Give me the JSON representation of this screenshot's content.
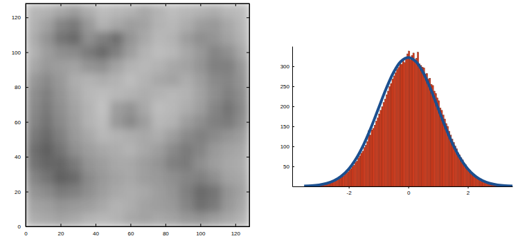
{
  "chart_data": [
    {
      "type": "heatmap",
      "xlim": [
        0,
        128
      ],
      "ylim": [
        0,
        128
      ],
      "zlim": [
        0,
        1
      ],
      "xticks": [
        0,
        20,
        40,
        60,
        80,
        100,
        120
      ],
      "yticks": [
        0,
        20,
        40,
        60,
        80,
        100,
        120
      ],
      "cells": [
        [
          0.72,
          0.7,
          0.66,
          0.62,
          0.68,
          0.74,
          0.72,
          0.7,
          0.66,
          0.7,
          0.74,
          0.72,
          0.7,
          0.68,
          0.72,
          0.74
        ],
        [
          0.7,
          0.64,
          0.52,
          0.48,
          0.6,
          0.7,
          0.66,
          0.62,
          0.64,
          0.7,
          0.72,
          0.68,
          0.62,
          0.6,
          0.66,
          0.72
        ],
        [
          0.68,
          0.58,
          0.46,
          0.42,
          0.56,
          0.5,
          0.44,
          0.58,
          0.66,
          0.72,
          0.7,
          0.62,
          0.56,
          0.58,
          0.64,
          0.7
        ],
        [
          0.7,
          0.62,
          0.56,
          0.54,
          0.48,
          0.42,
          0.5,
          0.62,
          0.7,
          0.74,
          0.72,
          0.66,
          0.6,
          0.52,
          0.56,
          0.66
        ],
        [
          0.66,
          0.6,
          0.62,
          0.64,
          0.58,
          0.56,
          0.64,
          0.7,
          0.72,
          0.7,
          0.66,
          0.64,
          0.58,
          0.5,
          0.5,
          0.6
        ],
        [
          0.6,
          0.54,
          0.6,
          0.68,
          0.7,
          0.68,
          0.7,
          0.74,
          0.7,
          0.66,
          0.64,
          0.68,
          0.62,
          0.54,
          0.52,
          0.58
        ],
        [
          0.56,
          0.5,
          0.58,
          0.66,
          0.72,
          0.74,
          0.72,
          0.7,
          0.68,
          0.7,
          0.72,
          0.7,
          0.64,
          0.56,
          0.5,
          0.56
        ],
        [
          0.54,
          0.48,
          0.56,
          0.64,
          0.7,
          0.76,
          0.62,
          0.58,
          0.66,
          0.74,
          0.72,
          0.68,
          0.62,
          0.52,
          0.46,
          0.54
        ],
        [
          0.52,
          0.46,
          0.54,
          0.62,
          0.7,
          0.74,
          0.6,
          0.54,
          0.62,
          0.72,
          0.7,
          0.62,
          0.56,
          0.5,
          0.48,
          0.56
        ],
        [
          0.48,
          0.42,
          0.5,
          0.6,
          0.66,
          0.72,
          0.7,
          0.68,
          0.66,
          0.68,
          0.62,
          0.54,
          0.5,
          0.54,
          0.58,
          0.62
        ],
        [
          0.44,
          0.38,
          0.46,
          0.56,
          0.62,
          0.66,
          0.68,
          0.7,
          0.66,
          0.62,
          0.54,
          0.48,
          0.52,
          0.6,
          0.64,
          0.66
        ],
        [
          0.46,
          0.4,
          0.4,
          0.48,
          0.58,
          0.62,
          0.66,
          0.66,
          0.62,
          0.58,
          0.5,
          0.48,
          0.56,
          0.62,
          0.66,
          0.68
        ],
        [
          0.52,
          0.46,
          0.38,
          0.42,
          0.54,
          0.6,
          0.64,
          0.66,
          0.62,
          0.6,
          0.56,
          0.52,
          0.5,
          0.56,
          0.64,
          0.66
        ],
        [
          0.58,
          0.54,
          0.48,
          0.5,
          0.56,
          0.62,
          0.66,
          0.68,
          0.66,
          0.62,
          0.58,
          0.5,
          0.42,
          0.46,
          0.58,
          0.64
        ],
        [
          0.64,
          0.62,
          0.58,
          0.6,
          0.62,
          0.66,
          0.7,
          0.68,
          0.64,
          0.62,
          0.6,
          0.52,
          0.44,
          0.48,
          0.6,
          0.66
        ],
        [
          0.68,
          0.66,
          0.64,
          0.66,
          0.7,
          0.72,
          0.7,
          0.66,
          0.64,
          0.66,
          0.64,
          0.6,
          0.58,
          0.62,
          0.66,
          0.7
        ]
      ]
    },
    {
      "type": "histogram",
      "color": "#e2401f",
      "xlim": [
        -3.9,
        3.5
      ],
      "ylim": [
        0,
        350
      ],
      "xticks": [
        -2,
        0,
        2
      ],
      "yticks": [
        50,
        100,
        150,
        200,
        250,
        300
      ],
      "bins": [
        -3,
        -2.95,
        -2.9,
        -2.85,
        -2.8,
        -2.75,
        -2.7,
        -2.65,
        -2.6,
        -2.55,
        -2.5,
        -2.45,
        -2.4,
        -2.35,
        -2.3,
        -2.25,
        -2.2,
        -2.15,
        -2.1,
        -2.05,
        -2,
        -1.95,
        -1.9,
        -1.85,
        -1.8,
        -1.75,
        -1.7,
        -1.65,
        -1.6,
        -1.55,
        -1.5,
        -1.45,
        -1.4,
        -1.35,
        -1.3,
        -1.25,
        -1.2,
        -1.15,
        -1.1,
        -1.05,
        -1,
        -0.95,
        -0.9,
        -0.85,
        -0.8,
        -0.75,
        -0.7,
        -0.65,
        -0.6,
        -0.55,
        -0.5,
        -0.45,
        -0.4,
        -0.35,
        -0.3,
        -0.25,
        -0.2,
        -0.15,
        -0.1,
        -0.05,
        0,
        0.05,
        0.1,
        0.15,
        0.2,
        0.25,
        0.3,
        0.35,
        0.4,
        0.45,
        0.5,
        0.55,
        0.6,
        0.65,
        0.7,
        0.75,
        0.8,
        0.85,
        0.9,
        0.95,
        1,
        1.05,
        1.1,
        1.15,
        1.2,
        1.25,
        1.3,
        1.35,
        1.4,
        1.45,
        1.5,
        1.55,
        1.6,
        1.65,
        1.7,
        1.75,
        1.8,
        1.85,
        1.9,
        1.95,
        2,
        2.05,
        2.1,
        2.15,
        2.2,
        2.25,
        2.3,
        2.35,
        2.4,
        2.45,
        2.5,
        2.55,
        2.6,
        2.65,
        2.7,
        2.75,
        2.8,
        2.85,
        2.9,
        2.95,
        3
      ],
      "counts": [
        3,
        4,
        4,
        5,
        6,
        6,
        8,
        9,
        10,
        11,
        13,
        14,
        17,
        18,
        21,
        24,
        26,
        30,
        33,
        36,
        41,
        44,
        50,
        53,
        60,
        63,
        71,
        76,
        83,
        88,
        97,
        103,
        112,
        139,
        128,
        141,
        145,
        153,
        163,
        171,
        181,
        190,
        199,
        210,
        218,
        229,
        238,
        249,
        257,
        268,
        276,
        284,
        292,
        297,
        310,
        305,
        318,
        309,
        322,
        331,
        338,
        316,
        327,
        333,
        312,
        320,
        335,
        306,
        302,
        298,
        296,
        281,
        282,
        268,
        270,
        255,
        252,
        238,
        232,
        221,
        214,
        196,
        190,
        178,
        168,
        157,
        150,
        138,
        128,
        118,
        110,
        101,
        94,
        84,
        79,
        72,
        66,
        58,
        54,
        48,
        44,
        40,
        35,
        31,
        28,
        25,
        22,
        19,
        18,
        15,
        13,
        12,
        10,
        9,
        8,
        7,
        6,
        5,
        4,
        4
      ],
      "series": [
        {
          "type": "line",
          "color": "#1b4f8f",
          "x": [
            -3.5,
            -3.25,
            -3,
            -2.75,
            -2.5,
            -2.25,
            -2,
            -1.75,
            -1.5,
            -1.25,
            -1,
            -0.75,
            -0.5,
            -0.25,
            0,
            0.25,
            0.5,
            0.75,
            1,
            1.25,
            1.5,
            1.75,
            2,
            2.25,
            2.5,
            2.75,
            3,
            3.25,
            3.5
          ],
          "values": [
            0.7,
            1.6,
            3.6,
            7.3,
            14.1,
            25.6,
            43.6,
            69.7,
            104.6,
            147.4,
            195.3,
            243.0,
            284.2,
            312.1,
            322,
            312.1,
            284.2,
            243.0,
            195.3,
            147.4,
            104.6,
            69.7,
            43.6,
            25.6,
            14.1,
            7.3,
            3.6,
            1.6,
            0.7
          ]
        }
      ]
    }
  ]
}
